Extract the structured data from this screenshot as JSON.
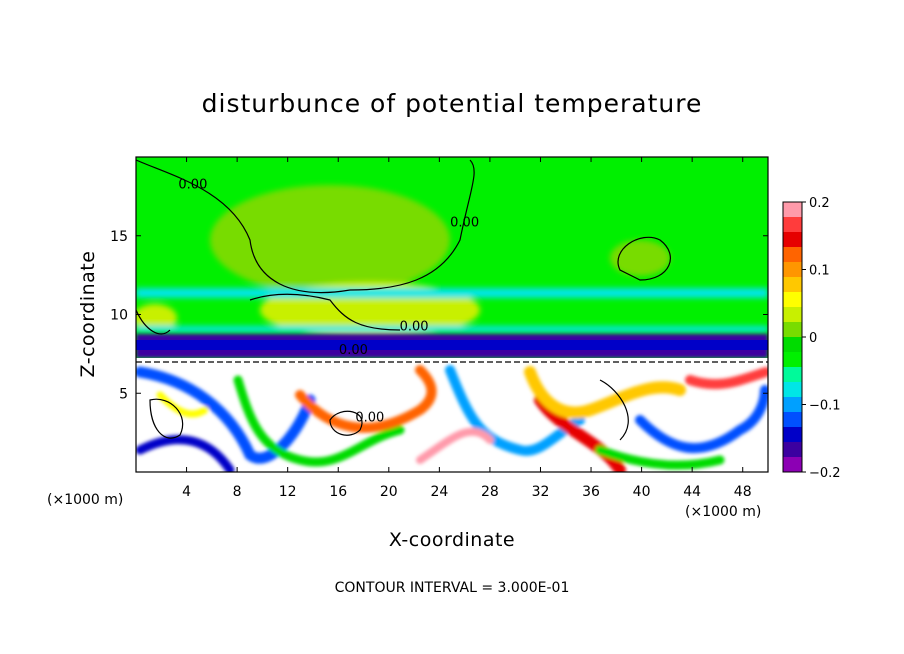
{
  "chart_data": {
    "type": "heatmap",
    "title": "disturbunce of potential temperature",
    "xlabel": "X-coordinate",
    "ylabel": "Z-coordinate",
    "x_unit_left": "(×1000 m)",
    "x_unit_right": "(×1000 m)",
    "xlim": [
      0,
      50
    ],
    "ylim": [
      0,
      20
    ],
    "xticks": [
      4,
      8,
      12,
      16,
      20,
      24,
      28,
      32,
      36,
      40,
      44,
      48
    ],
    "yticks": [
      5,
      10,
      15
    ],
    "colorbar": {
      "range": [
        -0.2,
        0.2
      ],
      "tick_labels": [
        "0.2",
        "0.1",
        "0",
        "−0.1",
        "−0.2"
      ],
      "tick_values": [
        0.2,
        0.1,
        0,
        -0.1,
        -0.2
      ],
      "colors": [
        "#ff9aaa",
        "#ff3c3c",
        "#e60000",
        "#ff6400",
        "#ff9600",
        "#ffc800",
        "#ffff00",
        "#c8f000",
        "#78dc00",
        "#00dc00",
        "#00f000",
        "#00fa9a",
        "#00e6e6",
        "#00a0ff",
        "#0050ff",
        "#0000c8",
        "#3c00a0",
        "#8c00b4"
      ]
    },
    "contour_labels": [
      {
        "text": "0.00",
        "x": 4.5,
        "z": 18.0
      },
      {
        "text": "0.00",
        "x": 26.0,
        "z": 15.6
      },
      {
        "text": "0.00",
        "x": 22.0,
        "z": 9.0
      },
      {
        "text": "0.00",
        "x": 17.2,
        "z": 7.5
      },
      {
        "text": "0.00",
        "x": 18.5,
        "z": 3.2
      }
    ],
    "contour_interval_text": "CONTOUR INTERVAL = 3.000E-01"
  }
}
